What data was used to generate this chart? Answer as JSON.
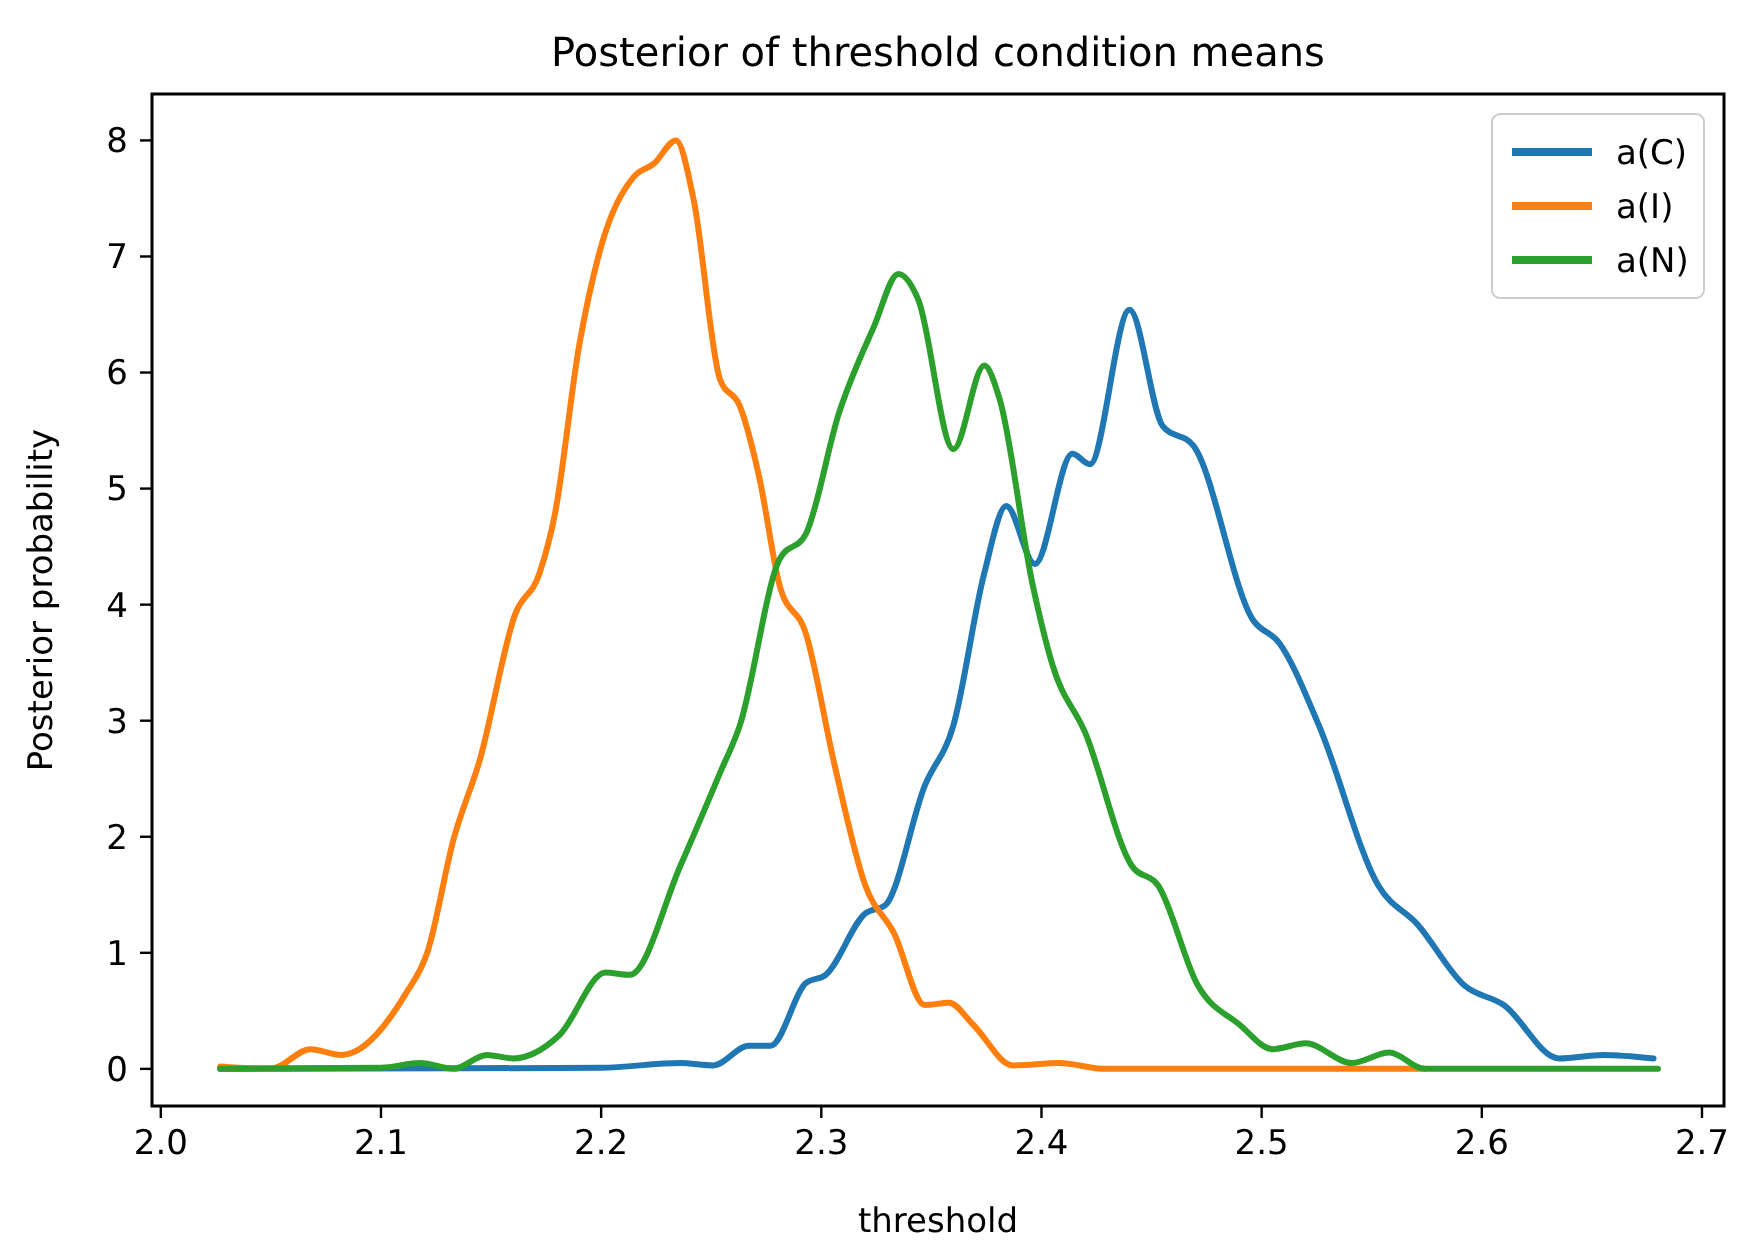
{
  "chart_data": {
    "type": "line",
    "title": "Posterior of threshold condition means",
    "xlabel": "threshold",
    "ylabel": "Posterior probability",
    "xlim": [
      1.996,
      2.71
    ],
    "ylim": [
      -0.32,
      8.4
    ],
    "xticks": [
      {
        "value": 2.0,
        "label": "2.0"
      },
      {
        "value": 2.1,
        "label": "2.1"
      },
      {
        "value": 2.2,
        "label": "2.2"
      },
      {
        "value": 2.3,
        "label": "2.3"
      },
      {
        "value": 2.4,
        "label": "2.4"
      },
      {
        "value": 2.5,
        "label": "2.5"
      },
      {
        "value": 2.6,
        "label": "2.6"
      },
      {
        "value": 2.7,
        "label": "2.7"
      }
    ],
    "yticks": [
      0,
      1,
      2,
      3,
      4,
      5,
      6,
      7,
      8
    ],
    "grid": false,
    "legend": "top right",
    "marker": "none",
    "line_style": "solid",
    "series": [
      {
        "name": "a(C)",
        "color": "#1f77b4",
        "x": [
          2.027,
          2.2,
          2.236,
          2.251,
          2.267,
          2.277,
          2.293,
          2.302,
          2.32,
          2.329,
          2.347,
          2.36,
          2.374,
          2.384,
          2.397,
          2.414,
          2.422,
          2.44,
          2.455,
          2.469,
          2.496,
          2.508,
          2.526,
          2.553,
          2.571,
          2.592,
          2.61,
          2.635,
          2.655,
          2.678
        ],
        "values": [
          0,
          0.01,
          0.05,
          0.03,
          0.2,
          0.2,
          0.74,
          0.81,
          1.34,
          1.41,
          2.44,
          2.96,
          4.27,
          4.85,
          4.35,
          5.3,
          5.21,
          6.54,
          5.54,
          5.37,
          3.87,
          3.67,
          2.96,
          1.58,
          1.24,
          0.72,
          0.55,
          0.09,
          0.12,
          0.09
        ]
      },
      {
        "name": "a(I)",
        "color": "#ff7f0e",
        "x": [
          2.027,
          2.05,
          2.068,
          2.082,
          2.111,
          2.121,
          2.133,
          2.145,
          2.161,
          2.172,
          2.179,
          2.19,
          2.199,
          2.215,
          2.224,
          2.234,
          2.242,
          2.254,
          2.263,
          2.272,
          2.281,
          2.293,
          2.306,
          2.32,
          2.333,
          2.347,
          2.358,
          2.369,
          2.387,
          2.408,
          2.429,
          2.574
        ],
        "values": [
          0.02,
          0,
          0.17,
          0.12,
          0.64,
          1.0,
          1.98,
          2.67,
          3.92,
          4.27,
          4.78,
          6.23,
          7.02,
          7.69,
          7.8,
          8.0,
          7.49,
          5.94,
          5.71,
          5.08,
          4.17,
          3.75,
          2.62,
          1.58,
          1.17,
          0.55,
          0.57,
          0.38,
          0.03,
          0.05,
          0,
          0
        ]
      },
      {
        "name": "a(N)",
        "color": "#2ca02c",
        "x": [
          2.027,
          2.1,
          2.118,
          2.133,
          2.148,
          2.16,
          2.181,
          2.202,
          2.213,
          2.236,
          2.254,
          2.263,
          2.281,
          2.293,
          2.308,
          2.324,
          2.335,
          2.344,
          2.36,
          2.374,
          2.381,
          2.396,
          2.405,
          2.42,
          2.441,
          2.453,
          2.471,
          2.49,
          2.505,
          2.52,
          2.541,
          2.558,
          2.574,
          2.68
        ],
        "values": [
          0,
          0.01,
          0.05,
          0,
          0.12,
          0.09,
          0.29,
          0.83,
          0.81,
          1.75,
          2.55,
          2.96,
          4.39,
          4.61,
          5.65,
          6.4,
          6.85,
          6.63,
          5.34,
          6.06,
          5.77,
          4.17,
          3.48,
          2.89,
          1.75,
          1.58,
          0.72,
          0.38,
          0.17,
          0.22,
          0.05,
          0.14,
          0,
          0
        ]
      }
    ]
  }
}
